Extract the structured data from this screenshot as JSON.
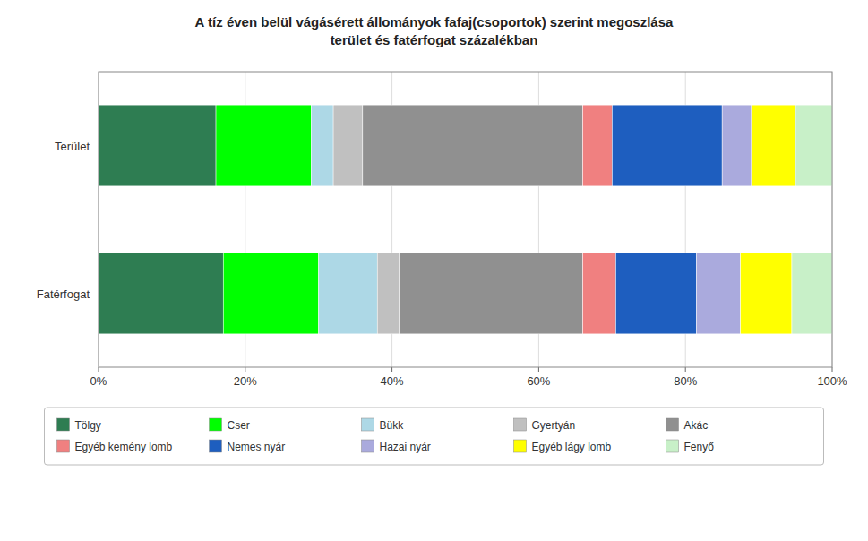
{
  "chart_data": {
    "type": "bar",
    "orientation": "horizontal",
    "stacked": true,
    "title": "A tíz éven belül vágásérett állományok fafaj(csoportok) szerint megoszlása\nterület és fatérfogat százalékban",
    "categories": [
      "Terület",
      "Fatérfogat"
    ],
    "series": [
      {
        "name": "Tölgy",
        "color": "#2E7D52",
        "values": [
          16.0,
          17.0
        ]
      },
      {
        "name": "Cser",
        "color": "#00FF00",
        "values": [
          13.0,
          13.0
        ]
      },
      {
        "name": "Bükk",
        "color": "#ADD8E6",
        "values": [
          3.0,
          8.0
        ]
      },
      {
        "name": "Gyertyán",
        "color": "#C0C0C0",
        "values": [
          4.0,
          3.0
        ]
      },
      {
        "name": "Akác",
        "color": "#909090",
        "values": [
          30.0,
          25.0
        ]
      },
      {
        "name": "Egyéb kemény lomb",
        "color": "#F08080",
        "values": [
          4.0,
          4.5
        ]
      },
      {
        "name": "Nemes nyár",
        "color": "#1E5EBF",
        "values": [
          15.0,
          11.0
        ]
      },
      {
        "name": "Hazai nyár",
        "color": "#AAAADD",
        "values": [
          4.0,
          6.0
        ]
      },
      {
        "name": "Egyéb lágy lomb",
        "color": "#FFFF00",
        "values": [
          6.0,
          7.0
        ]
      },
      {
        "name": "Fenyő",
        "color": "#C8F0C8",
        "values": [
          5.0,
          5.5
        ]
      }
    ],
    "xlim": [
      0,
      100
    ],
    "xticks": [
      {
        "value": 0,
        "label": "0%"
      },
      {
        "value": 20,
        "label": "20%"
      },
      {
        "value": 40,
        "label": "40%"
      },
      {
        "value": 60,
        "label": "60%"
      },
      {
        "value": 80,
        "label": "80%"
      },
      {
        "value": 100,
        "label": "100%"
      }
    ],
    "grid": true,
    "legend": "bottom"
  }
}
